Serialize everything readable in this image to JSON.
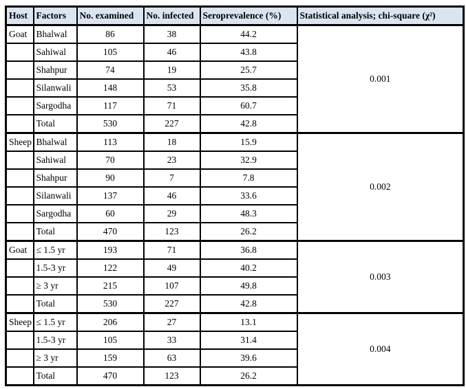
{
  "table": {
    "headers": [
      "Host",
      "Factors",
      "No. examined",
      "No. infected",
      "Seroprevalence (%)",
      "Statistical analysis; chi-square (χ²)"
    ],
    "sections": [
      {
        "host": "Goat",
        "chi_square": "0.001",
        "rows": [
          {
            "factor": "Bhalwal",
            "examined": "86",
            "infected": "38",
            "prevalence": "44.2"
          },
          {
            "factor": "Sahiwal",
            "examined": "105",
            "infected": "46",
            "prevalence": "43.8"
          },
          {
            "factor": "Shahpur",
            "examined": "74",
            "infected": "19",
            "prevalence": "25.7"
          },
          {
            "factor": "Silanwali",
            "examined": "148",
            "infected": "53",
            "prevalence": "35.8"
          },
          {
            "factor": "Sargodha",
            "examined": "117",
            "infected": "71",
            "prevalence": "60.7"
          },
          {
            "factor": "Total",
            "examined": "530",
            "infected": "227",
            "prevalence": "42.8"
          }
        ]
      },
      {
        "host": "Sheep",
        "chi_square": "0.002",
        "rows": [
          {
            "factor": "Bhalwal",
            "examined": "113",
            "infected": "18",
            "prevalence": "15.9"
          },
          {
            "factor": "Sahiwal",
            "examined": "70",
            "infected": "23",
            "prevalence": "32.9"
          },
          {
            "factor": "Shahpur",
            "examined": "90",
            "infected": "7",
            "prevalence": "7.8"
          },
          {
            "factor": "Silanwali",
            "examined": "137",
            "infected": "46",
            "prevalence": "33.6"
          },
          {
            "factor": "Sargodha",
            "examined": "60",
            "infected": "29",
            "prevalence": "48.3"
          },
          {
            "factor": "Total",
            "examined": "470",
            "infected": "123",
            "prevalence": "26.2"
          }
        ]
      },
      {
        "host": "Goat",
        "chi_square": "0.003",
        "rows": [
          {
            "factor": "≤ 1.5 yr",
            "examined": "193",
            "infected": "71",
            "prevalence": "36.8"
          },
          {
            "factor": "1.5-3 yr",
            "examined": "122",
            "infected": "49",
            "prevalence": "40.2"
          },
          {
            "factor": "≥ 3 yr",
            "examined": "215",
            "infected": "107",
            "prevalence": "49.8"
          },
          {
            "factor": "Total",
            "examined": "530",
            "infected": "227",
            "prevalence": "42.8"
          }
        ]
      },
      {
        "host": "Sheep",
        "chi_square": "0.004",
        "rows": [
          {
            "factor": "≤ 1.5 yr",
            "examined": "206",
            "infected": "27",
            "prevalence": "13.1"
          },
          {
            "factor": "1.5-3 yr",
            "examined": "105",
            "infected": "33",
            "prevalence": "31.4"
          },
          {
            "factor": "≥ 3 yr",
            "examined": "159",
            "infected": "63",
            "prevalence": "39.6"
          },
          {
            "factor": "Total",
            "examined": "470",
            "infected": "123",
            "prevalence": "26.2"
          }
        ]
      }
    ]
  },
  "colors": {
    "header_bg": "#dbe5f1",
    "border": "#000000",
    "page_bg": "#ffffff"
  }
}
